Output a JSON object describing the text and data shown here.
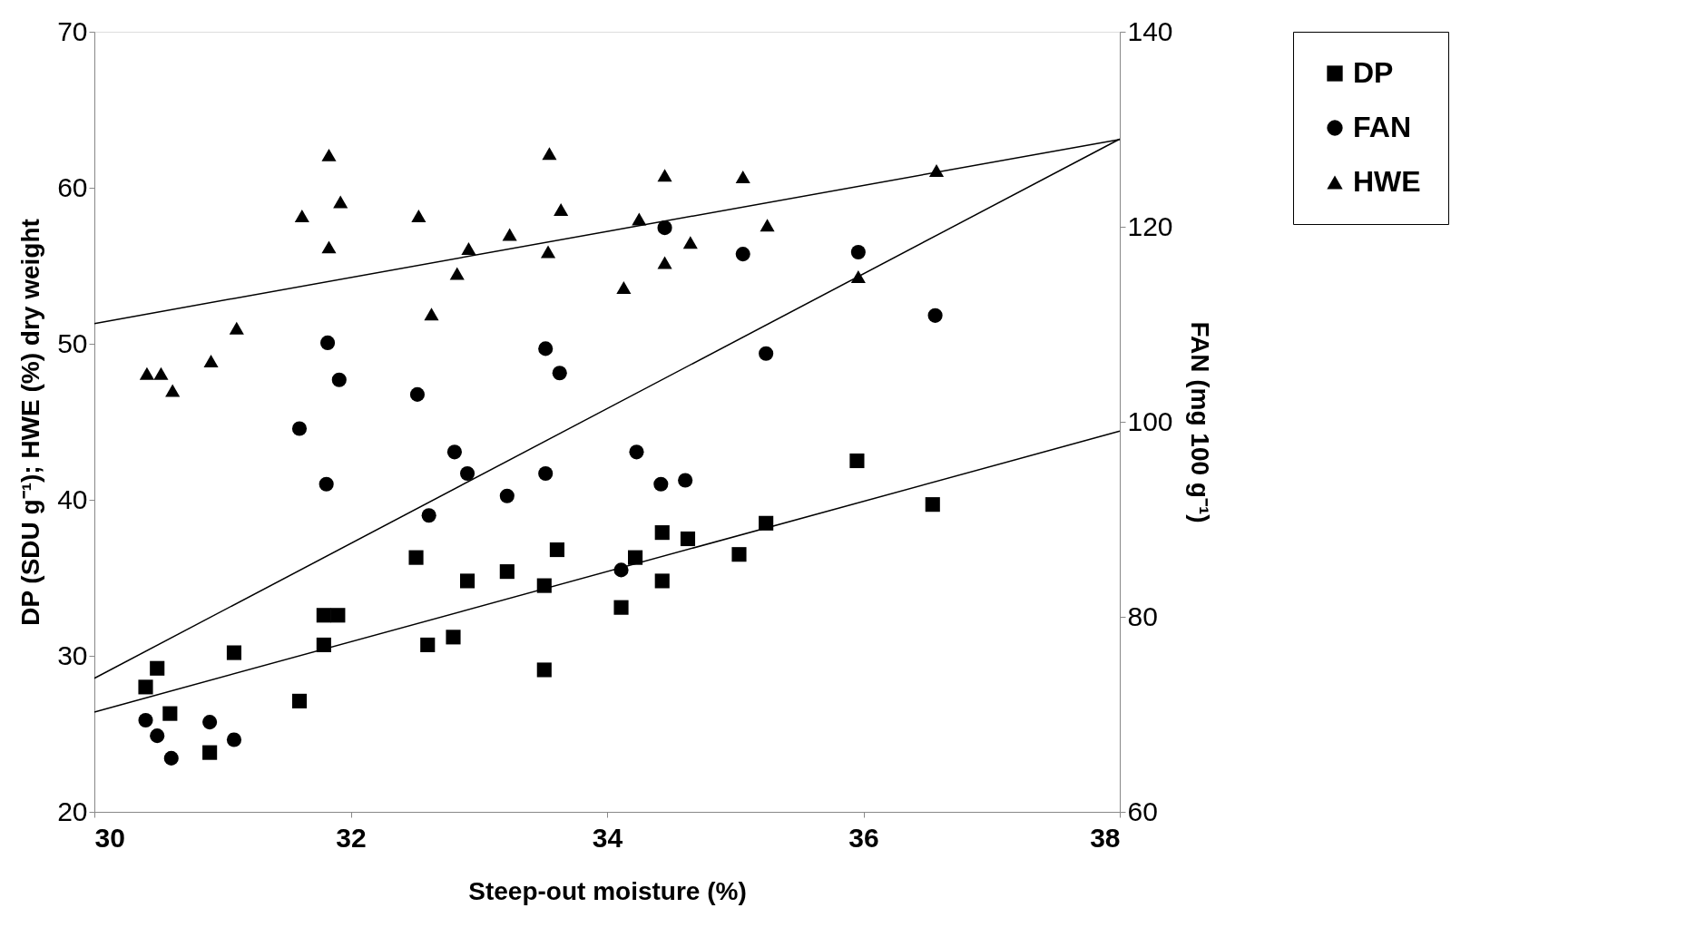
{
  "chart_data": {
    "type": "scatter",
    "xlabel": "Steep-out moisture (%)",
    "ylabel": "DP (SDU g⁻¹); HWE (%) dry weight",
    "y2label": "FAN (mg 100 g⁻¹)",
    "xlim": [
      30,
      38
    ],
    "xticks": [
      30,
      32,
      34,
      36,
      38
    ],
    "ylim": [
      20,
      70
    ],
    "yticks": [
      20,
      30,
      40,
      50,
      60,
      70
    ],
    "y2lim": [
      60,
      140
    ],
    "y2ticks": [
      60,
      80,
      100,
      120,
      140
    ],
    "grid": false,
    "legend": "right",
    "series": [
      {
        "name": "DP",
        "marker": "square",
        "color": "#000000",
        "x": [
          30.4,
          30.49,
          30.59,
          30.9,
          31.09,
          31.6,
          31.79,
          31.79,
          31.9,
          32.51,
          32.6,
          32.8,
          32.91,
          33.22,
          33.51,
          33.51,
          33.61,
          34.11,
          34.22,
          34.43,
          34.43,
          34.63,
          35.03,
          35.24,
          35.95,
          36.54
        ],
        "values": [
          28.0,
          29.2,
          26.3,
          23.8,
          30.2,
          27.1,
          30.7,
          32.6,
          32.6,
          36.3,
          30.7,
          31.2,
          34.8,
          35.4,
          34.5,
          29.1,
          36.8,
          33.1,
          36.3,
          37.9,
          34.8,
          37.5,
          36.5,
          38.5,
          42.5,
          39.7
        ]
      },
      {
        "name": "FAN",
        "marker": "circle",
        "color": "#000000",
        "axis": "y2",
        "x": [
          30.4,
          30.49,
          30.6,
          30.9,
          31.09,
          31.6,
          31.81,
          31.82,
          31.91,
          32.52,
          32.61,
          32.81,
          32.91,
          33.22,
          33.52,
          33.52,
          33.63,
          34.11,
          34.23,
          34.45,
          34.42,
          34.61,
          35.06,
          35.24,
          35.96,
          36.56
        ],
        "values": [
          69.4,
          67.8,
          65.5,
          69.2,
          67.4,
          99.3,
          93.6,
          108.1,
          104.3,
          102.8,
          90.4,
          96.9,
          94.7,
          92.4,
          94.7,
          107.5,
          105.0,
          84.8,
          96.9,
          119.9,
          93.6,
          94.0,
          117.2,
          107.0,
          117.4,
          110.9
        ]
      },
      {
        "name": "HWE",
        "marker": "triangle",
        "color": "#000000",
        "x": [
          30.41,
          30.52,
          30.61,
          30.91,
          31.11,
          31.62,
          31.83,
          31.83,
          31.92,
          32.53,
          32.63,
          32.83,
          32.92,
          33.24,
          33.54,
          33.55,
          33.64,
          34.13,
          34.25,
          34.45,
          34.45,
          34.65,
          35.06,
          35.25,
          35.96,
          36.57
        ],
        "values": [
          48.1,
          48.1,
          47.0,
          48.9,
          51.0,
          58.2,
          62.1,
          56.2,
          59.1,
          58.2,
          51.9,
          54.5,
          56.1,
          57.0,
          55.9,
          62.2,
          58.6,
          53.6,
          58.0,
          55.2,
          60.8,
          56.5,
          60.7,
          57.6,
          54.3,
          61.1
        ]
      },
      {
        "type": "line",
        "color": "#000000",
        "x": [
          30,
          38
        ],
        "values": [
          26.4,
          44.4
        ]
      },
      {
        "type": "line",
        "color": "#000000",
        "axis": "y2",
        "x": [
          30,
          38
        ],
        "values": [
          73.7,
          129.0
        ]
      },
      {
        "type": "line",
        "color": "#000000",
        "x": [
          30,
          38
        ],
        "values": [
          51.3,
          63.1
        ]
      }
    ]
  }
}
